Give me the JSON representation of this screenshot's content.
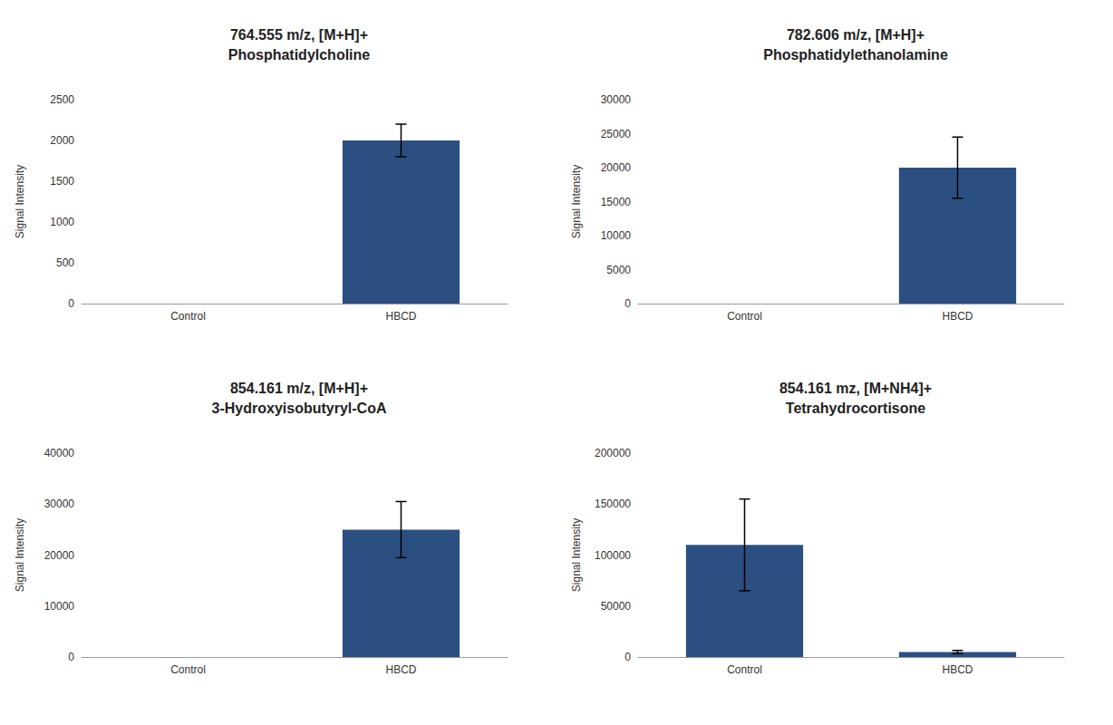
{
  "chart_data": [
    {
      "type": "bar",
      "title": "764.555 m/z, [M+H]+",
      "subtitle": "Phosphatidylcholine",
      "ylabel": "Signal Intensity",
      "categories": [
        "Control",
        "HBCD"
      ],
      "values": [
        0,
        2000
      ],
      "errors": [
        0,
        200
      ],
      "color": "#2B4F81",
      "ylim": [
        0,
        2500
      ],
      "yticks": [
        0,
        500,
        1000,
        1500,
        2000,
        2500
      ],
      "grid": false
    },
    {
      "type": "bar",
      "title": "782.606 m/z, [M+H]+",
      "subtitle": "Phosphatidylethanolamine",
      "ylabel": "Signal Intensity",
      "categories": [
        "Control",
        "HBCD"
      ],
      "values": [
        0,
        20000
      ],
      "errors": [
        0,
        4500
      ],
      "color": "#2B4F81",
      "ylim": [
        0,
        30000
      ],
      "yticks": [
        0,
        5000,
        10000,
        15000,
        20000,
        25000,
        30000
      ],
      "grid": false
    },
    {
      "type": "bar",
      "title": "854.161 m/z, [M+H]+",
      "subtitle": "3-Hydroxyisobutyryl-CoA",
      "ylabel": "Signal Intensity",
      "categories": [
        "Control",
        "HBCD"
      ],
      "values": [
        0,
        25000
      ],
      "errors": [
        0,
        5500
      ],
      "color": "#2B4F81",
      "ylim": [
        0,
        40000
      ],
      "yticks": [
        0,
        10000,
        20000,
        30000,
        40000
      ],
      "grid": false
    },
    {
      "type": "bar",
      "title": "854.161 mz, [M+NH4]+",
      "subtitle": "Tetrahydrocortisone",
      "ylabel": "Signal Intensity",
      "categories": [
        "Control",
        "HBCD"
      ],
      "values": [
        110000,
        5000
      ],
      "errors": [
        45000,
        1500
      ],
      "color": "#2B4F81",
      "ylim": [
        0,
        200000
      ],
      "yticks": [
        0,
        50000,
        100000,
        150000,
        200000
      ],
      "grid": false
    }
  ]
}
